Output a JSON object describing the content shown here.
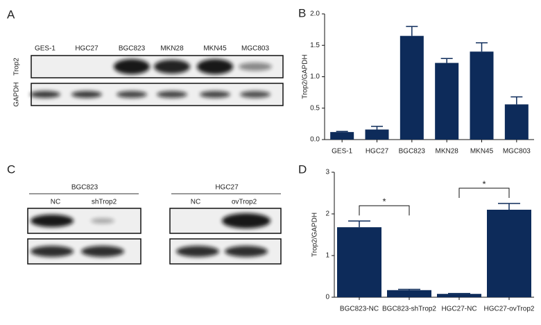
{
  "panel_letters": [
    "A",
    "B",
    "C",
    "D"
  ],
  "blots": {
    "a": {
      "lanes": [
        "GES-1",
        "HGC27",
        "BGC823",
        "MKN28",
        "MKN45",
        "MGC803"
      ],
      "rows": [
        "Trop2",
        "GAPDH"
      ]
    },
    "c": [
      {
        "title": "BGC823",
        "lanes": [
          "NC",
          "shTrop2"
        ]
      },
      {
        "title": "HGC27",
        "lanes": [
          "NC",
          "ovTrop2"
        ]
      }
    ]
  },
  "chart_data": [
    {
      "type": "bar",
      "y_label": "Trop2/GAPDH",
      "color": "#0d2b5a",
      "categories": [
        "GES-1",
        "HGC27",
        "BGC823",
        "MKN28",
        "MKN45",
        "MGC803"
      ],
      "values": [
        0.12,
        0.16,
        1.65,
        1.22,
        1.4,
        0.56
      ],
      "errors": [
        0.01,
        0.05,
        0.15,
        0.07,
        0.14,
        0.12
      ],
      "ylim": [
        0,
        2
      ],
      "yticks": [
        {
          "value": 0,
          "label": "0.0"
        },
        0.5,
        {
          "value": 1,
          "label": "1.0"
        },
        1.5,
        {
          "value": 2,
          "label": "2.0"
        }
      ]
    },
    {
      "type": "bar",
      "y_label": "Trop2/GAPDH",
      "color": "#0d2b5a",
      "categories": [
        "BGC823-NC",
        "BGC823-shTrop2",
        "HGC27-NC",
        "HGC27-ovTrop2"
      ],
      "values": [
        1.68,
        0.17,
        0.08,
        2.1
      ],
      "errors": [
        0.15,
        0.02,
        0.01,
        0.15
      ],
      "ylim": [
        0,
        3
      ],
      "yticks": [
        0,
        1,
        2,
        3
      ],
      "annotations": [
        {
          "text": "*",
          "between": [
            0,
            1
          ]
        },
        {
          "text": "*",
          "between": [
            2,
            3
          ]
        }
      ]
    }
  ]
}
